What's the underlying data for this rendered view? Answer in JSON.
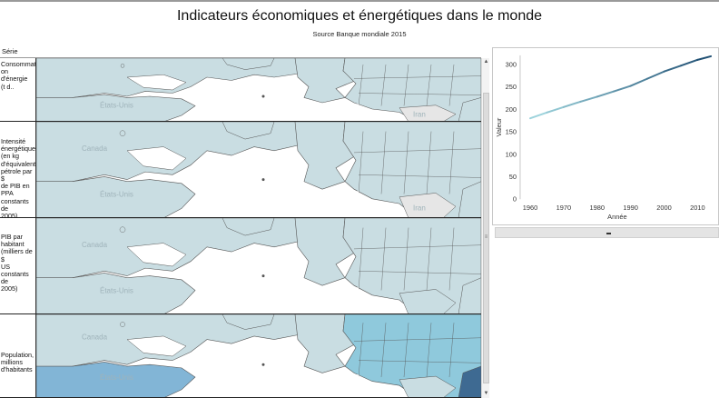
{
  "header": {
    "title": "Indicateurs économiques et énergétiques dans le monde",
    "subtitle": "Source Banque mondiale 2015"
  },
  "table": {
    "column_header": "Série",
    "rows": [
      {
        "label": "Consommation d'énergie (t d..",
        "labels_on_map": [
          "États-Unis",
          "Iran"
        ]
      },
      {
        "label": "Intensité énergétique (en kg d'équivalent pétrole par $ de PIB en PPA constants de 2005)",
        "labels_on_map": [
          "Canada",
          "États-Unis",
          "Iran"
        ]
      },
      {
        "label": "PIB par habitant (milliers de $ US constants de 2005)",
        "labels_on_map": [
          "Canada",
          "États-Unis"
        ]
      },
      {
        "label": "Population, millions d'habitants",
        "labels_on_map": [
          "Canada",
          "États-Unis"
        ]
      }
    ]
  },
  "colors": {
    "land_light": "#c9dde2",
    "land_pale": "#e6e6e6",
    "land_medium": "#8fc9dc",
    "land_dark": "#3e6a92",
    "border": "#555555",
    "line_start": "#9dd3dc",
    "line_end": "#1f4f73"
  },
  "chart_data": {
    "type": "line",
    "xlabel": "Année",
    "ylabel": "Valeur",
    "x_ticks": [
      "1960",
      "1970",
      "1980",
      "1990",
      "2000",
      "2010"
    ],
    "y_ticks": [
      "0",
      "50",
      "100",
      "150",
      "200",
      "250",
      "300"
    ],
    "xlim": [
      1957,
      2015
    ],
    "ylim": [
      0,
      320
    ],
    "x": [
      1960,
      1965,
      1970,
      1975,
      1980,
      1985,
      1990,
      1995,
      2000,
      2005,
      2010,
      2014
    ],
    "values": [
      180,
      193,
      205,
      217,
      228,
      240,
      252,
      268,
      284,
      297,
      310,
      318
    ]
  }
}
